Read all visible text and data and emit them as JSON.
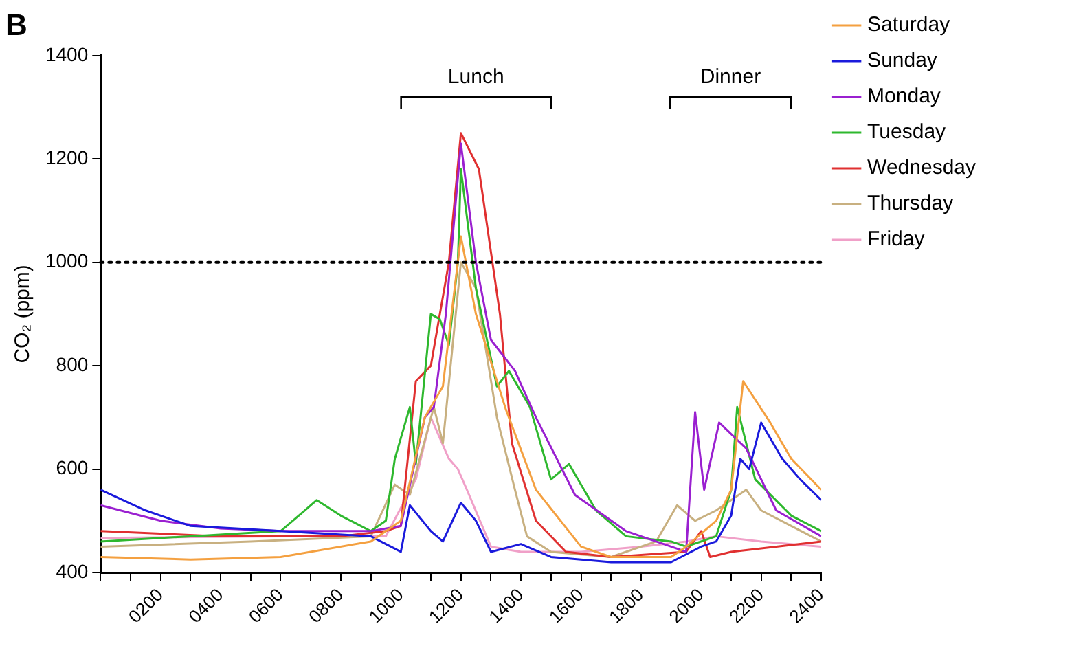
{
  "chart_data": {
    "type": "line",
    "title": "B",
    "ylabel": "CO₂ (ppm)",
    "xlim": [
      0,
      2400
    ],
    "ylim": [
      400,
      1400
    ],
    "xticks": [
      {
        "value": 0,
        "label": null
      },
      {
        "value": 100,
        "label": null
      },
      {
        "value": 200,
        "label": "0200"
      },
      {
        "value": 300,
        "label": null
      },
      {
        "value": 400,
        "label": "0400"
      },
      {
        "value": 500,
        "label": null
      },
      {
        "value": 600,
        "label": "0600"
      },
      {
        "value": 700,
        "label": null
      },
      {
        "value": 800,
        "label": "0800"
      },
      {
        "value": 900,
        "label": null
      },
      {
        "value": 1000,
        "label": "1000"
      },
      {
        "value": 1100,
        "label": null
      },
      {
        "value": 1200,
        "label": "1200"
      },
      {
        "value": 1300,
        "label": null
      },
      {
        "value": 1400,
        "label": "1400"
      },
      {
        "value": 1500,
        "label": null
      },
      {
        "value": 1600,
        "label": "1600"
      },
      {
        "value": 1700,
        "label": null
      },
      {
        "value": 1800,
        "label": "1800"
      },
      {
        "value": 1900,
        "label": null
      },
      {
        "value": 2000,
        "label": "2000"
      },
      {
        "value": 2100,
        "label": null
      },
      {
        "value": 2200,
        "label": "2200"
      },
      {
        "value": 2300,
        "label": null
      },
      {
        "value": 2400,
        "label": "2400"
      }
    ],
    "yticks": [
      400,
      600,
      800,
      1000,
      1200,
      1400
    ],
    "grid": false,
    "legend": "right",
    "marker": "none",
    "line_style": "solid",
    "ref_lines": [
      {
        "axis": "y",
        "value": 1000,
        "line_style": "dotted",
        "color": "#000000"
      }
    ],
    "annotations": [
      "Lunch",
      "Dinner"
    ],
    "series": [
      {
        "name": "Saturday",
        "color": "#f4a040",
        "x": [
          0,
          300,
          600,
          900,
          1000,
          1080,
          1140,
          1200,
          1250,
          1350,
          1450,
          1600,
          1700,
          1900,
          1950,
          2050,
          2100,
          2140,
          2230,
          2300,
          2400
        ],
        "values": [
          430,
          425,
          430,
          460,
          500,
          700,
          760,
          1050,
          900,
          715,
          560,
          450,
          430,
          430,
          450,
          500,
          560,
          770,
          690,
          620,
          560
        ]
      },
      {
        "name": "Sunday",
        "color": "#1a1adc",
        "x": [
          0,
          150,
          300,
          600,
          900,
          1000,
          1030,
          1100,
          1140,
          1200,
          1250,
          1300,
          1400,
          1500,
          1700,
          1900,
          2000,
          2050,
          2100,
          2130,
          2160,
          2200,
          2270,
          2330,
          2400
        ],
        "values": [
          560,
          520,
          490,
          480,
          470,
          440,
          530,
          480,
          460,
          535,
          500,
          440,
          455,
          430,
          420,
          420,
          450,
          460,
          510,
          620,
          600,
          690,
          620,
          580,
          540
        ]
      },
      {
        "name": "Monday",
        "color": "#9a20d0",
        "x": [
          0,
          200,
          400,
          600,
          900,
          1000,
          1080,
          1110,
          1150,
          1200,
          1250,
          1300,
          1380,
          1450,
          1580,
          1750,
          1900,
          1950,
          1980,
          2010,
          2060,
          2150,
          2250,
          2400
        ],
        "values": [
          530,
          500,
          485,
          480,
          480,
          490,
          700,
          720,
          900,
          1230,
          1000,
          850,
          790,
          700,
          550,
          480,
          450,
          440,
          710,
          560,
          690,
          640,
          520,
          470
        ]
      },
      {
        "name": "Tuesday",
        "color": "#2eb82e",
        "x": [
          0,
          300,
          600,
          680,
          720,
          800,
          900,
          950,
          980,
          1030,
          1050,
          1100,
          1130,
          1160,
          1190,
          1200,
          1250,
          1320,
          1360,
          1430,
          1500,
          1560,
          1650,
          1750,
          1900,
          1950,
          2050,
          2100,
          2120,
          2180,
          2300,
          2400
        ],
        "values": [
          460,
          470,
          480,
          520,
          540,
          510,
          480,
          500,
          620,
          720,
          610,
          900,
          890,
          840,
          1000,
          1180,
          950,
          760,
          790,
          720,
          580,
          610,
          520,
          470,
          460,
          450,
          470,
          560,
          720,
          580,
          510,
          480
        ]
      },
      {
        "name": "Wednesday",
        "color": "#e03030",
        "x": [
          0,
          400,
          800,
          950,
          1000,
          1050,
          1100,
          1160,
          1200,
          1260,
          1330,
          1370,
          1450,
          1550,
          1700,
          1950,
          2000,
          2030,
          2100,
          2250,
          2400
        ],
        "values": [
          480,
          470,
          470,
          480,
          490,
          770,
          800,
          1000,
          1250,
          1180,
          900,
          650,
          500,
          440,
          430,
          440,
          480,
          430,
          440,
          450,
          460
        ]
      },
      {
        "name": "Thursday",
        "color": "#c8b080",
        "x": [
          0,
          500,
          900,
          980,
          1030,
          1110,
          1140,
          1200,
          1250,
          1320,
          1380,
          1420,
          1500,
          1700,
          1850,
          1920,
          1980,
          2050,
          2150,
          2200,
          2300,
          2400
        ],
        "values": [
          450,
          460,
          470,
          570,
          550,
          720,
          650,
          1000,
          950,
          700,
          560,
          470,
          440,
          430,
          460,
          530,
          500,
          520,
          560,
          520,
          490,
          460
        ]
      },
      {
        "name": "Friday",
        "color": "#f0a0c8",
        "x": [
          0,
          600,
          950,
          1050,
          1100,
          1160,
          1190,
          1220,
          1300,
          1400,
          1600,
          1800,
          1950,
          2050,
          2200,
          2400
        ],
        "values": [
          467,
          470,
          470,
          580,
          700,
          620,
          600,
          560,
          450,
          440,
          440,
          450,
          460,
          470,
          460,
          450
        ]
      }
    ]
  }
}
